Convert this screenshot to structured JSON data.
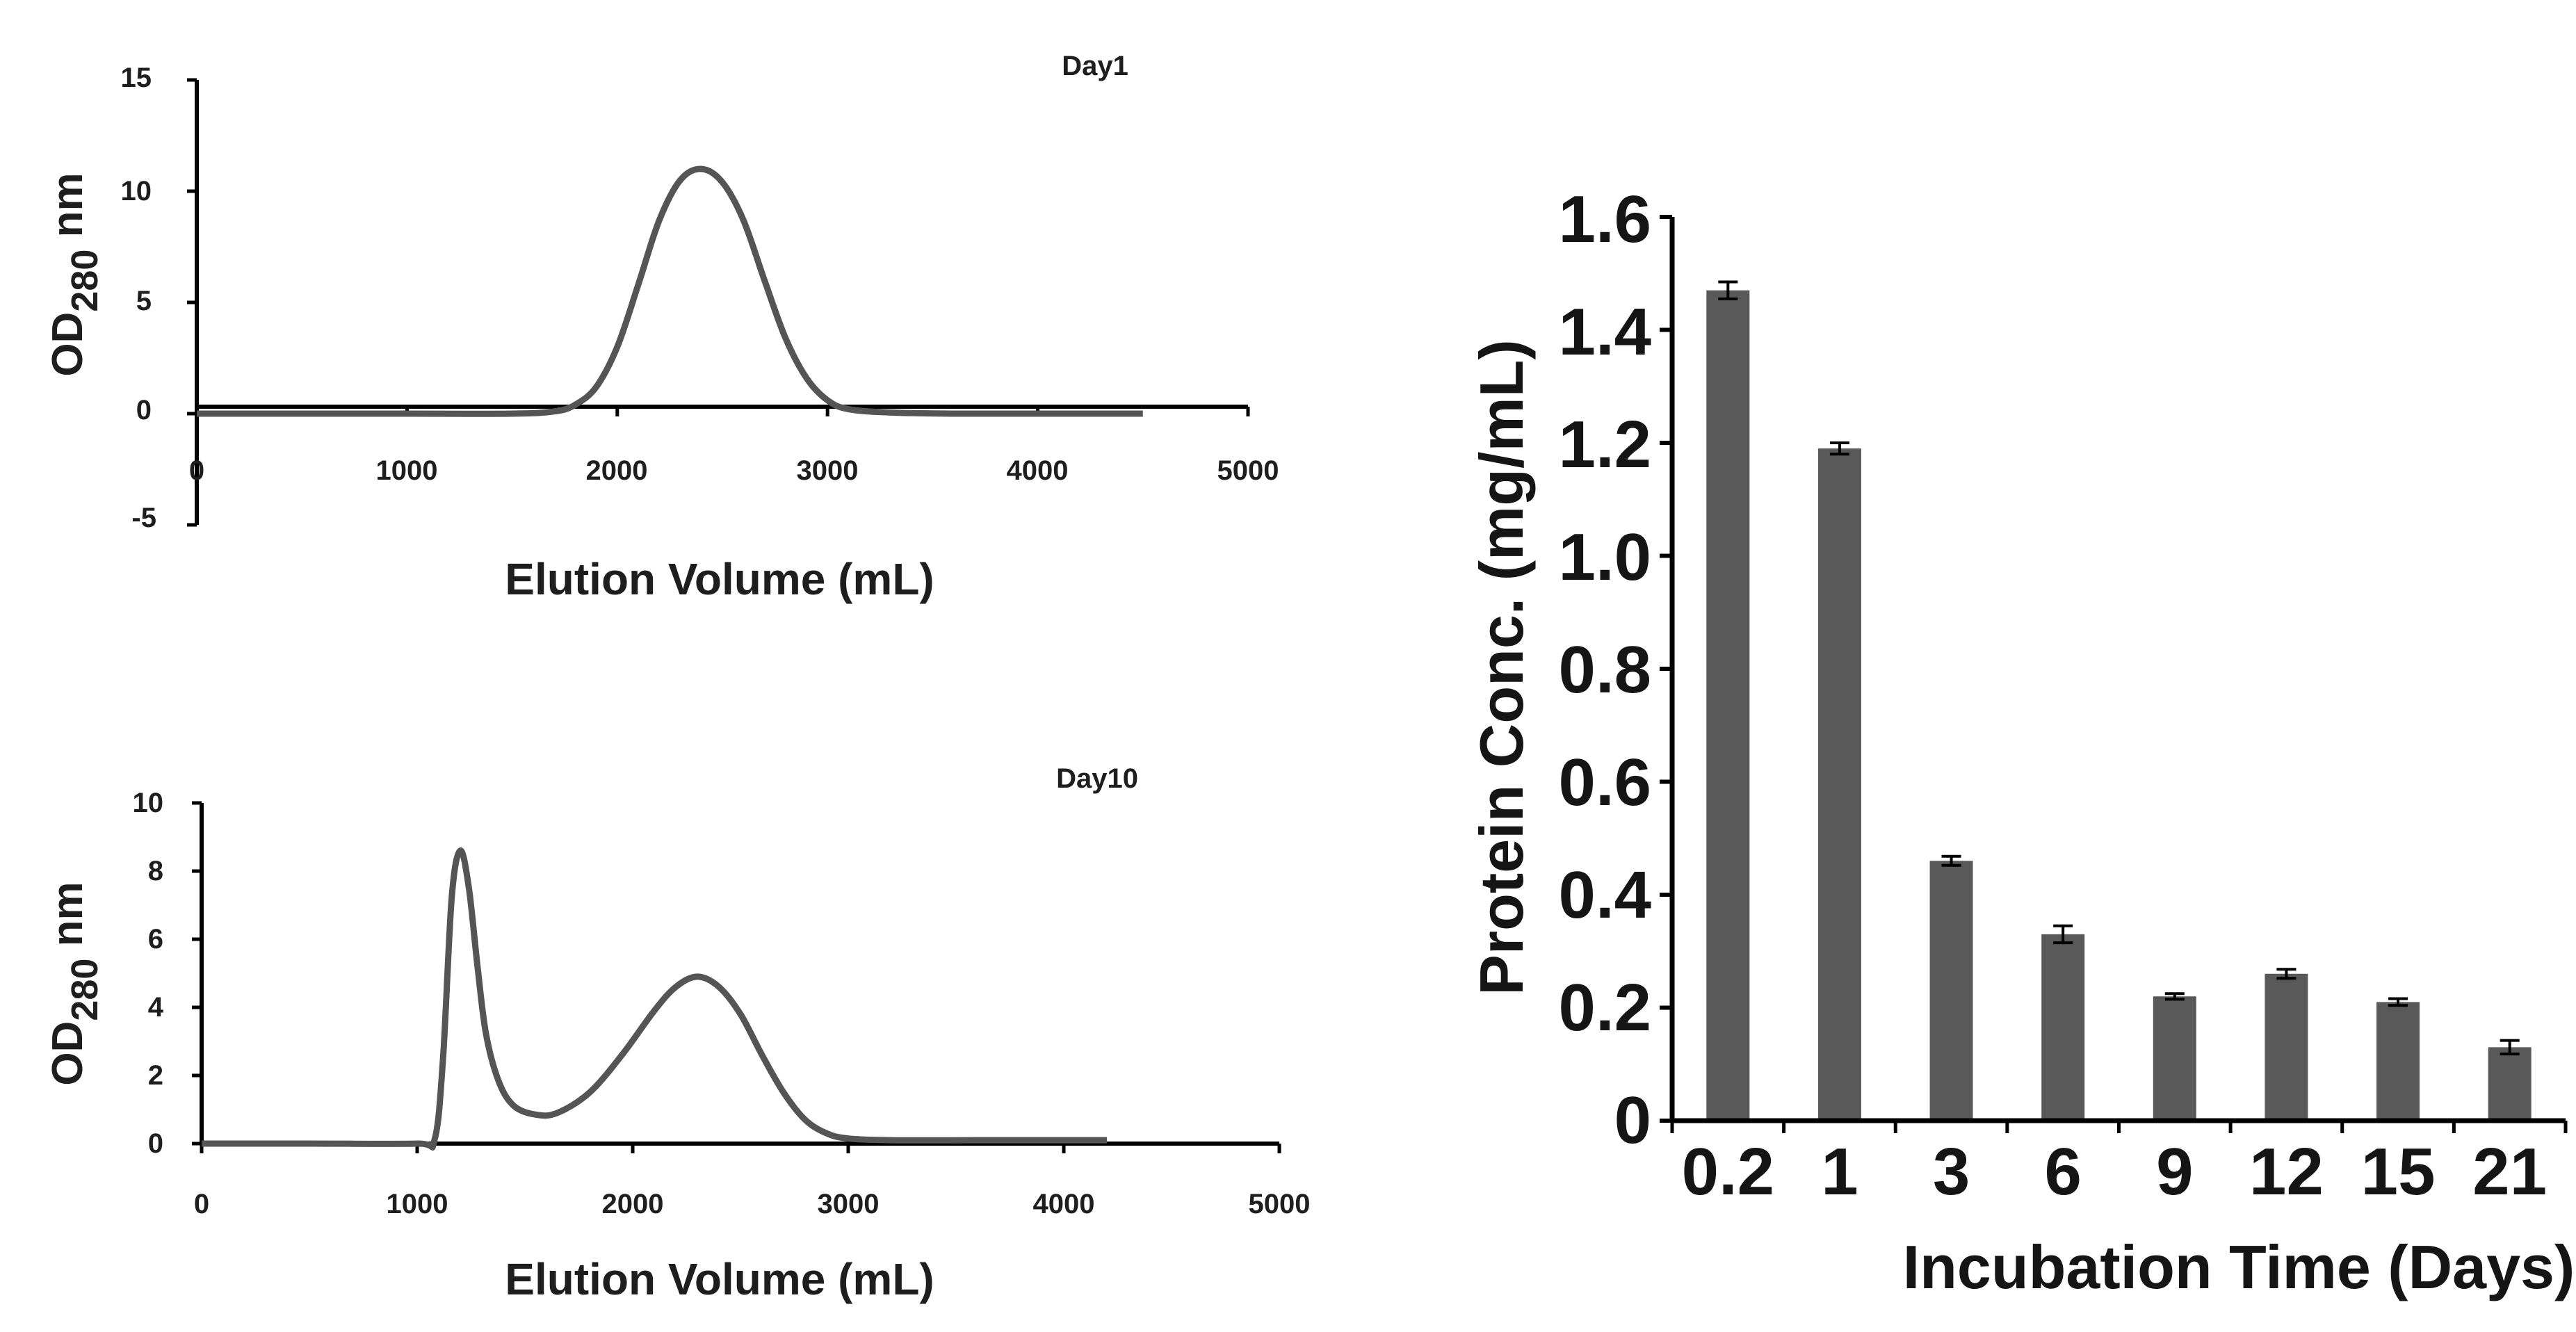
{
  "chart_data": [
    {
      "type": "line",
      "title": "Day1",
      "xlabel": "Elution Volume (mL)",
      "ylabel": "OD",
      "ylabel_sub": "280",
      "ylabel_unit": " nm",
      "xlim": [
        0,
        5000
      ],
      "ylim": [
        -5,
        15
      ],
      "x_ticks": [
        "0",
        "1000",
        "2000",
        "3000",
        "4000",
        "5000"
      ],
      "y_ticks": [
        "15",
        "10",
        "5",
        "0",
        "-5"
      ],
      "series": [
        {
          "name": "Day1",
          "x": [
            0,
            500,
            1000,
            1500,
            1700,
            1800,
            1900,
            2000,
            2100,
            2200,
            2300,
            2400,
            2500,
            2600,
            2700,
            2800,
            2900,
            3000,
            3100,
            3300,
            3600,
            4000,
            4500
          ],
          "y": [
            0,
            0,
            0,
            0,
            0.1,
            0.4,
            1.2,
            3.0,
            5.8,
            8.7,
            10.5,
            11.0,
            10.4,
            8.7,
            6.0,
            3.4,
            1.6,
            0.6,
            0.2,
            0.05,
            0,
            0,
            0
          ]
        }
      ]
    },
    {
      "type": "line",
      "title": "Day10",
      "xlabel": "Elution Volume (mL)",
      "ylabel": "OD",
      "ylabel_sub": "280",
      "ylabel_unit": " nm",
      "xlim": [
        0,
        5000
      ],
      "ylim": [
        0,
        10
      ],
      "x_ticks": [
        "0",
        "1000",
        "2000",
        "3000",
        "4000",
        "5000"
      ],
      "y_ticks": [
        "10",
        "8",
        "6",
        "4",
        "2",
        "0"
      ],
      "series": [
        {
          "name": "Day10",
          "x": [
            0,
            500,
            1000,
            1080,
            1120,
            1160,
            1200,
            1240,
            1280,
            1320,
            1380,
            1450,
            1550,
            1650,
            1800,
            1950,
            2100,
            2200,
            2300,
            2400,
            2500,
            2600,
            2700,
            2800,
            2900,
            3000,
            3200,
            3600,
            4000,
            4200
          ],
          "y": [
            0,
            0,
            0,
            0.1,
            2.5,
            7.2,
            8.6,
            7.5,
            5.2,
            3.2,
            1.8,
            1.1,
            0.85,
            0.9,
            1.5,
            2.6,
            3.9,
            4.6,
            4.9,
            4.6,
            3.8,
            2.6,
            1.5,
            0.7,
            0.3,
            0.15,
            0.1,
            0.1,
            0.1,
            0.1
          ]
        }
      ]
    },
    {
      "type": "bar",
      "title": "",
      "xlabel": "Incubation Time (Days)",
      "ylabel": "Protein Conc. (mg/mL)",
      "ylim": [
        0,
        1.6
      ],
      "y_ticks": [
        "1.6",
        "1.4",
        "1.2",
        "1.0",
        "0.8",
        "0.6",
        "0.4",
        "0.2",
        "0"
      ],
      "categories": [
        "0.2",
        "1",
        "3",
        "6",
        "9",
        "12",
        "15",
        "21"
      ],
      "values": [
        1.47,
        1.19,
        0.46,
        0.33,
        0.22,
        0.26,
        0.21,
        0.13
      ],
      "errors": [
        0.015,
        0.01,
        0.008,
        0.015,
        0.005,
        0.008,
        0.006,
        0.012
      ]
    }
  ],
  "colors": {
    "line": "#555555",
    "bar": "#595959",
    "axis": "#000000"
  }
}
